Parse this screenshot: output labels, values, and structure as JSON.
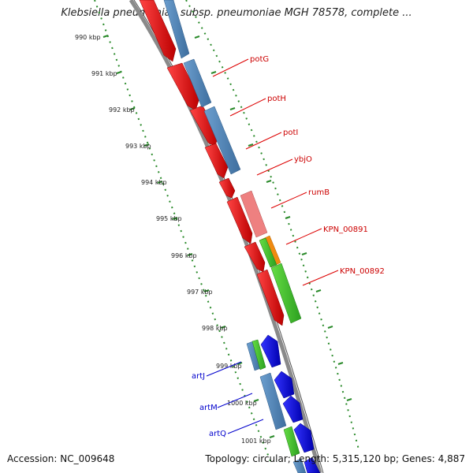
{
  "title": "Klebsiella pneumoniae subsp. pneumoniae MGH 78578, complete ...",
  "footer": {
    "accession": "Accession: NC_009648",
    "stats": "Topology: circular; Length: 5,315,120 bp; Genes: 4,887"
  },
  "ruler": {
    "labels": [
      "990 kbp",
      "991 kbp",
      "992 kbp",
      "993 kbp",
      "994 kbp",
      "995 kbp",
      "996 kbp",
      "997 kbp",
      "998 kbp",
      "999 kbp",
      "1000 kbp",
      "1001 kbp"
    ]
  },
  "genes": [
    {
      "label": "potG",
      "color": "#cc0000"
    },
    {
      "label": "potH",
      "color": "#cc0000"
    },
    {
      "label": "potI",
      "color": "#cc0000"
    },
    {
      "label": "ybjO",
      "color": "#cc0000"
    },
    {
      "label": "rumB",
      "color": "#cc0000"
    },
    {
      "label": "KPN_00891",
      "color": "#cc0000"
    },
    {
      "label": "KPN_00892",
      "color": "#cc0000"
    },
    {
      "label": "artJ",
      "color": "#0000cc"
    },
    {
      "label": "artM",
      "color": "#0000cc"
    },
    {
      "label": "artQ",
      "color": "#0000cc"
    }
  ],
  "colors": {
    "backbone": "#888888",
    "ruler": "#2a8a2a",
    "forward_cds": "#ee1111",
    "reverse_cds": "#1111ee",
    "blue_gene": "#4f84b8",
    "pink_gene": "#ee8080",
    "green_gene": "#44cc33",
    "orange_gene": "#f08a10"
  }
}
